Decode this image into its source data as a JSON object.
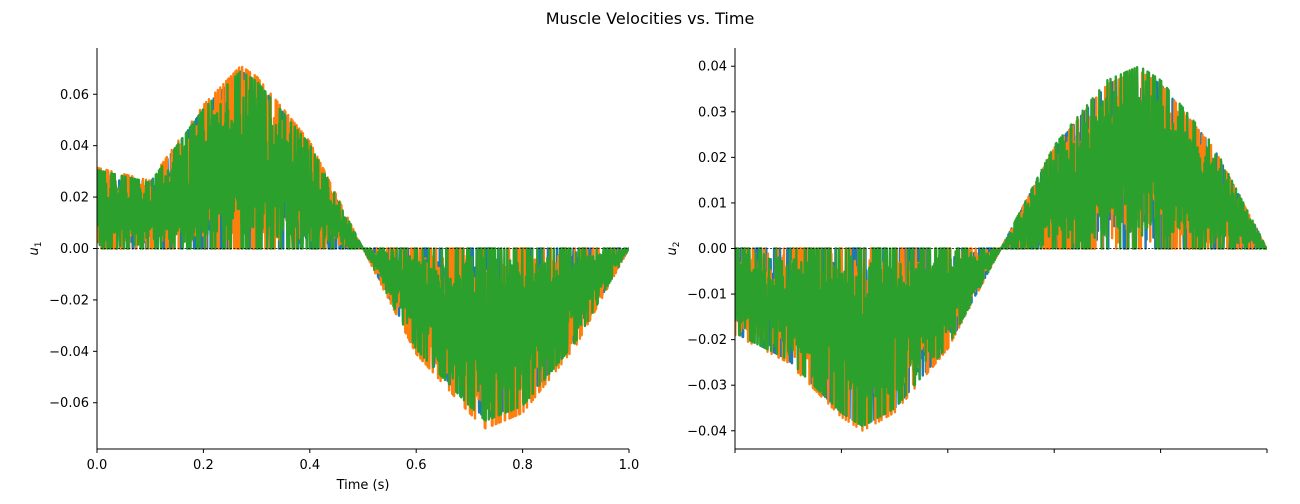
{
  "figure": {
    "title": "Muscle Velocities vs. Time"
  },
  "colors": {
    "series_1": "#1f77b4",
    "series_2": "#ff7f0e",
    "series_3": "#2ca02c",
    "zero_line": "#000000"
  },
  "chart_data": [
    {
      "type": "line",
      "title": "",
      "xlabel": "Time (s)",
      "ylabel": "u",
      "ylabel_subscript": "1",
      "xlim": [
        0.0,
        1.0
      ],
      "ylim": [
        -0.078,
        0.078
      ],
      "xticks": [
        0.0,
        0.2,
        0.4,
        0.6,
        0.8,
        1.0
      ],
      "xtick_labels": [
        "0.0",
        "0.2",
        "0.4",
        "0.6",
        "0.8",
        "1.0"
      ],
      "yticks": [
        -0.06,
        -0.04,
        -0.02,
        0.0,
        0.02,
        0.04,
        0.06
      ],
      "ytick_labels": [
        "−0.06",
        "−0.04",
        "−0.02",
        "0.00",
        "0.02",
        "0.04",
        "0.06"
      ],
      "grid": false,
      "legend": "none",
      "reference_line": 0.0,
      "envelope": {
        "shape": "sine",
        "x": [
          0.0,
          0.1,
          0.2,
          0.27,
          0.3,
          0.4,
          0.5,
          0.6,
          0.7,
          0.73,
          0.8,
          0.9,
          1.0
        ],
        "upper": [
          0.031,
          0.026,
          0.055,
          0.07,
          0.066,
          0.041,
          0.0,
          -0.041,
          -0.064,
          -0.07,
          -0.064,
          -0.038,
          0.0
        ]
      },
      "series": [
        {
          "color_key": "series_1",
          "peak": 0.069,
          "trough": -0.066
        },
        {
          "color_key": "series_2",
          "peak": 0.071,
          "trough": -0.07
        },
        {
          "color_key": "series_3",
          "peak": 0.069,
          "trough": -0.067
        }
      ]
    },
    {
      "type": "line",
      "title": "",
      "xlabel": "",
      "ylabel": "u",
      "ylabel_subscript": "2",
      "xlim": [
        0.0,
        1.0
      ],
      "ylim": [
        -0.044,
        0.044
      ],
      "xticks": [
        0.0,
        0.2,
        0.4,
        0.6,
        0.8,
        1.0
      ],
      "xtick_labels": [
        "",
        "",
        "",
        "",
        "",
        ""
      ],
      "yticks": [
        -0.04,
        -0.03,
        -0.02,
        -0.01,
        0.0,
        0.01,
        0.02,
        0.03,
        0.04
      ],
      "ytick_labels": [
        "−0.04",
        "−0.03",
        "−0.02",
        "−0.01",
        "0.00",
        "0.01",
        "0.02",
        "0.03",
        "0.04"
      ],
      "grid": false,
      "legend": "none",
      "reference_line": 0.0,
      "envelope": {
        "shape": "sine",
        "x": [
          0.0,
          0.1,
          0.2,
          0.24,
          0.3,
          0.4,
          0.5,
          0.6,
          0.7,
          0.76,
          0.8,
          0.9,
          1.0
        ],
        "upper": [
          -0.019,
          -0.025,
          -0.037,
          -0.04,
          -0.036,
          -0.022,
          0.0,
          0.022,
          0.036,
          0.039,
          0.036,
          0.022,
          0.0
        ]
      },
      "series": [
        {
          "color_key": "series_1",
          "peak": 0.039,
          "trough": -0.039
        },
        {
          "color_key": "series_2",
          "peak": 0.039,
          "trough": -0.04
        },
        {
          "color_key": "series_3",
          "peak": 0.04,
          "trough": -0.039
        }
      ]
    }
  ]
}
